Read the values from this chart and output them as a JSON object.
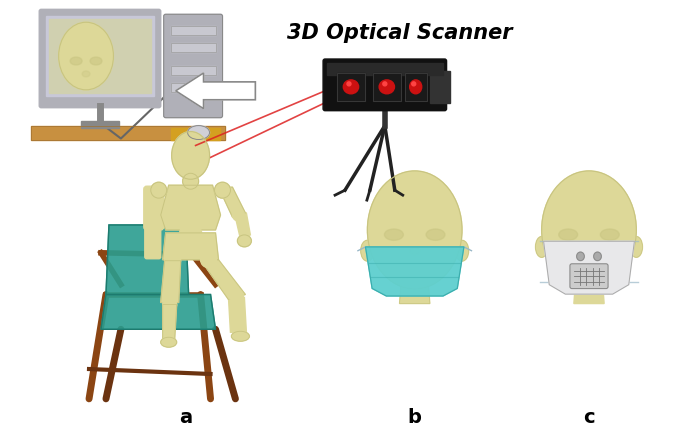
{
  "title": "3D Optical Scanner",
  "title_fontsize": 15,
  "title_fontweight": "bold",
  "label_a": "a",
  "label_b": "b",
  "label_c": "c",
  "label_fontsize": 14,
  "background_color": "#ffffff",
  "figure_width": 6.85,
  "figure_height": 4.37,
  "dpi": 100,
  "head_color": "#ddd898",
  "head_shadow": "#c8c480",
  "mask_cyan": "#5ecfcf",
  "mask_cyan_dark": "#3aacac",
  "mask_white": "#e8e8ea",
  "mask_white_dark": "#aaaaaa",
  "chair_wood": "#6b3310",
  "chair_wood2": "#8b4513",
  "cushion": "#2a9d8f",
  "cushion_dark": "#1d7a6e",
  "scanner_dark": "#1a1a1a",
  "scanner_mid": "#333333",
  "laser_red": "#dd2222",
  "monitor_frame": "#b0b0b8",
  "monitor_screen": "#c8c8d8",
  "screen_bg": "#d0d0b0",
  "tower_color": "#b0b0b8",
  "desk_color": "#c89040",
  "mousepad_color": "#d4a020",
  "mannequin_color": "#ddd898",
  "mannequin_dark": "#c0bc7a",
  "strap_color": "#9ab8c8"
}
